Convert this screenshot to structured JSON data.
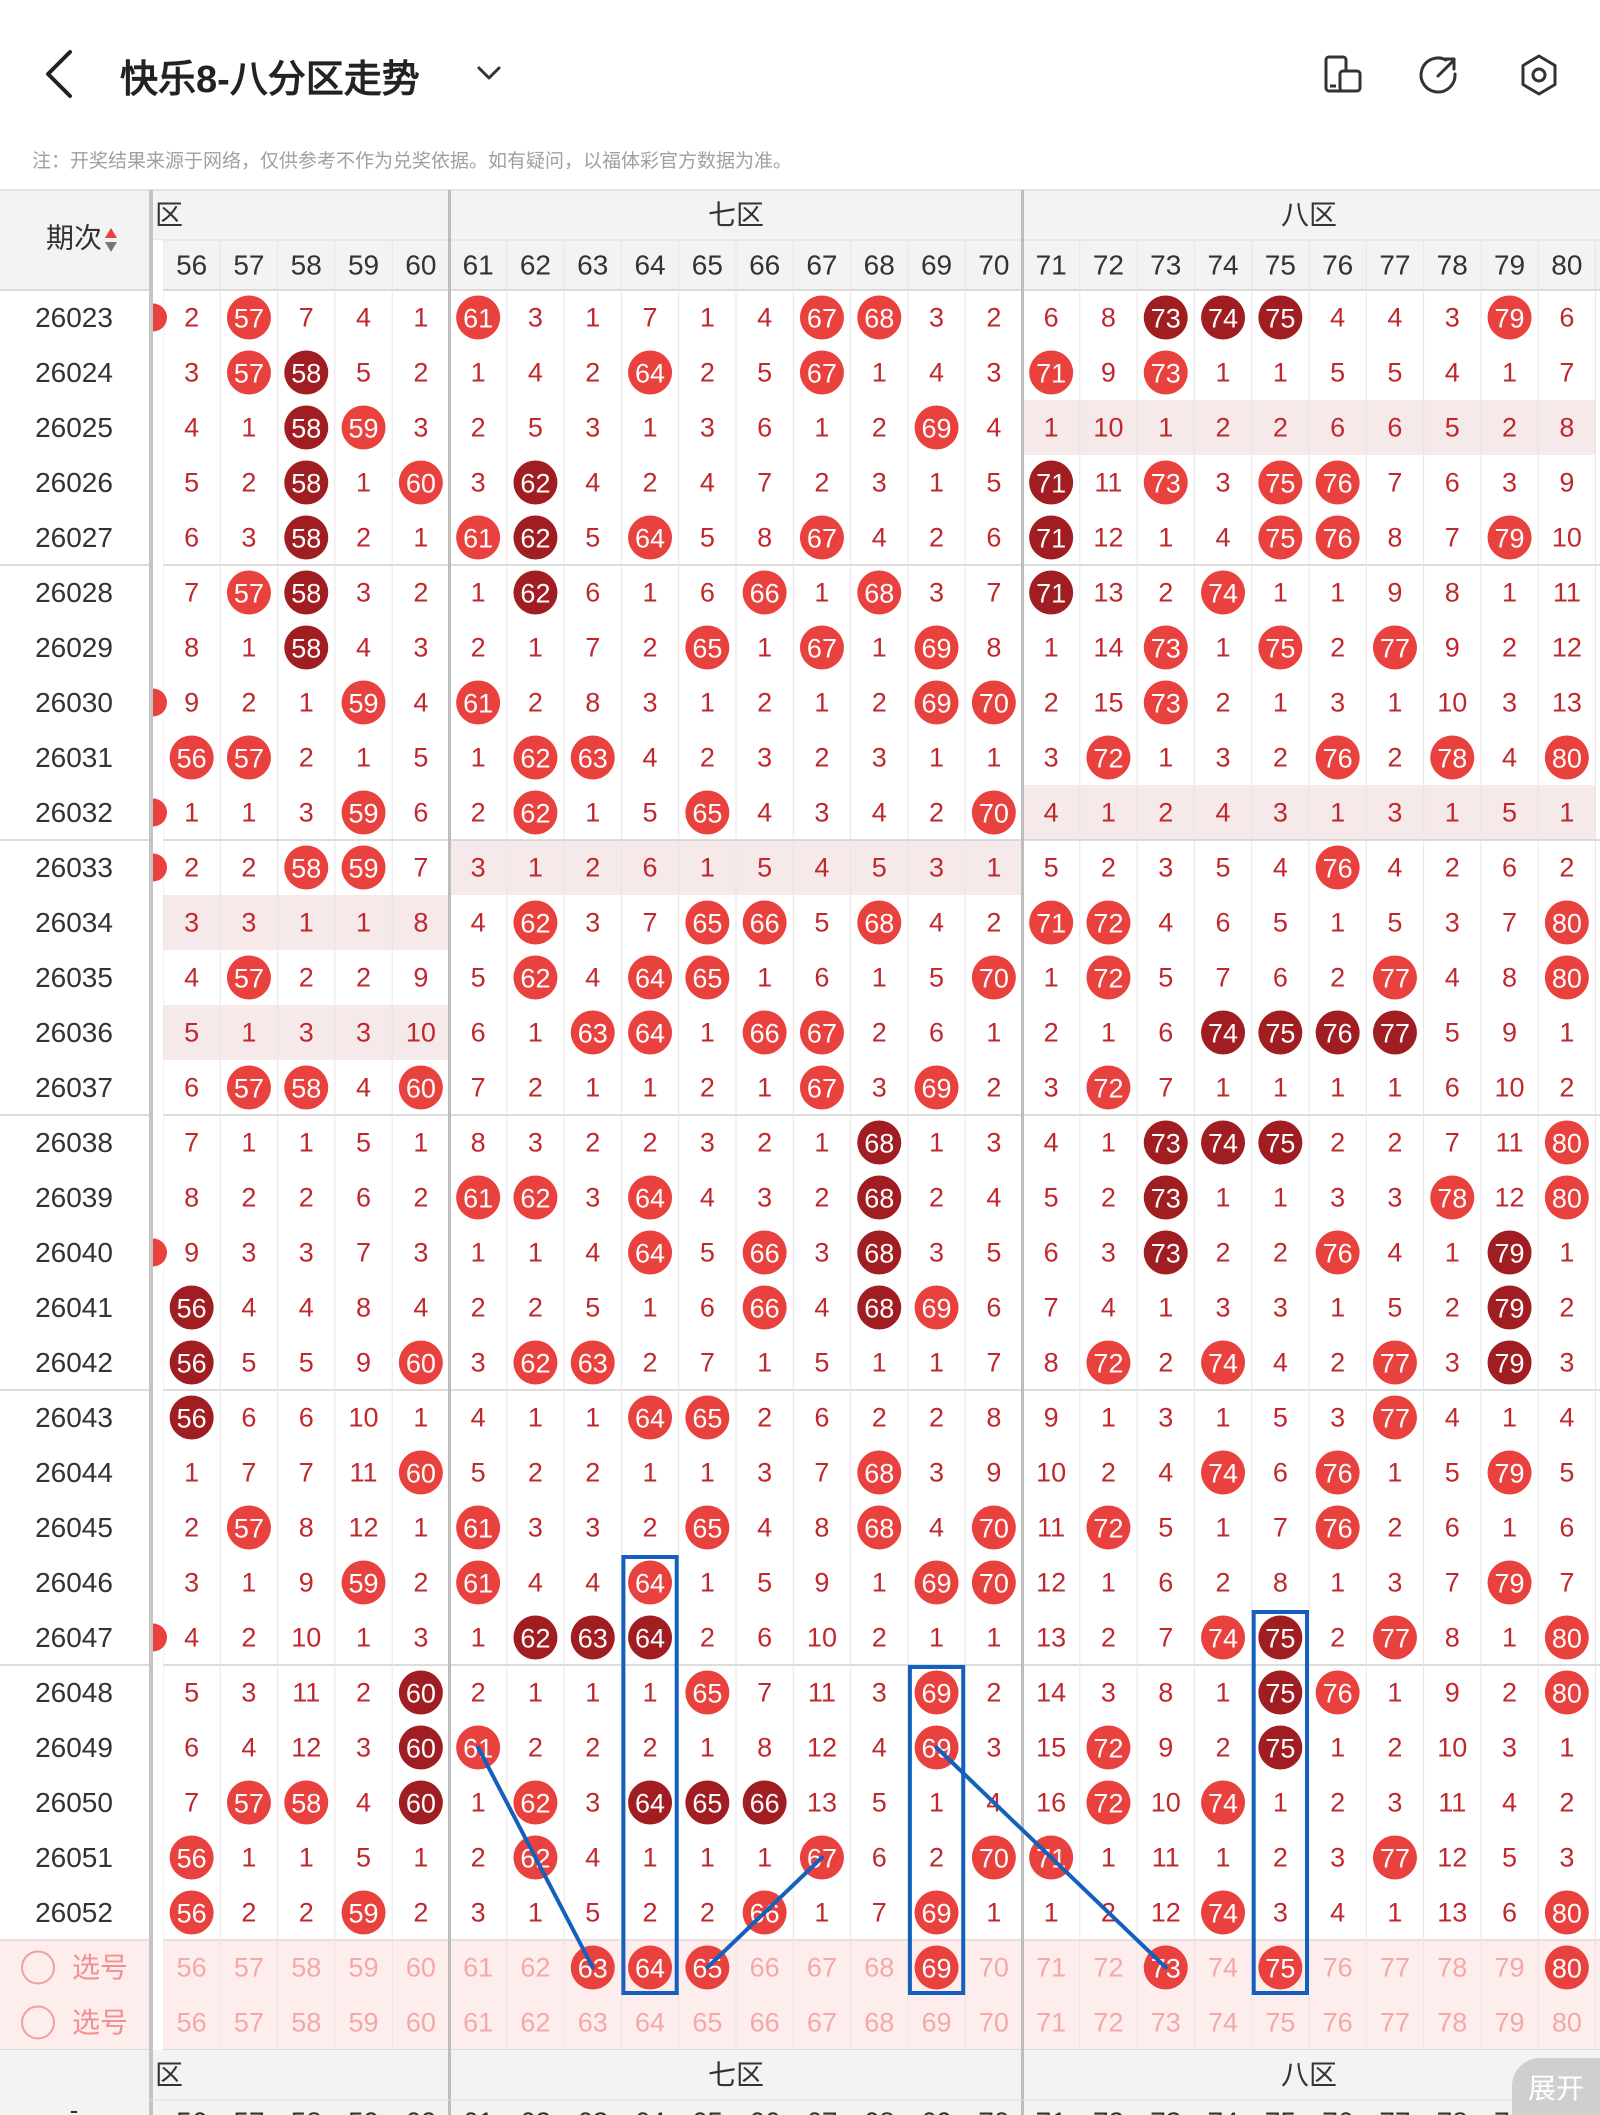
{
  "header": {
    "title": "快乐8-八分区走势",
    "icons": [
      "back-icon",
      "chevron-down-icon",
      "screen-rotate-icon",
      "share-icon",
      "settings-icon"
    ]
  },
  "notice": "注：开奖结果来源于网络，仅供参考不作为兑奖依据。如有疑问，以福体彩官方数据为准。",
  "table": {
    "period_label": "期次",
    "zones": [
      {
        "label": "六区",
        "visible_label": "六区"
      },
      {
        "label": "七区"
      },
      {
        "label": "八区"
      }
    ],
    "columns": [
      56,
      57,
      58,
      59,
      60,
      61,
      62,
      63,
      64,
      65,
      66,
      67,
      68,
      69,
      70,
      71,
      72,
      73,
      74,
      75,
      76,
      77,
      78,
      79,
      80
    ],
    "rows": [
      {
        "period": "26023",
        "vals": [
          "2",
          "57",
          "7",
          "4",
          "1",
          "61",
          "3",
          "1",
          "7",
          "1",
          "4",
          "67",
          "68",
          "3",
          "2",
          "6",
          "8",
          "73",
          "74",
          "75",
          "4",
          "4",
          "3",
          "79",
          "6"
        ]
      },
      {
        "period": "26024",
        "vals": [
          "3",
          "57",
          "58",
          "5",
          "2",
          "1",
          "4",
          "2",
          "64",
          "2",
          "5",
          "67",
          "1",
          "4",
          "3",
          "71",
          "9",
          "73",
          "1",
          "1",
          "5",
          "5",
          "4",
          "1",
          "7"
        ]
      },
      {
        "period": "26025",
        "vals": [
          "4",
          "1",
          "58",
          "59",
          "3",
          "2",
          "5",
          "3",
          "1",
          "3",
          "6",
          "1",
          "2",
          "69",
          "4",
          "1",
          "10",
          "1",
          "2",
          "2",
          "6",
          "6",
          "5",
          "2",
          "8"
        ]
      },
      {
        "period": "26026",
        "vals": [
          "5",
          "2",
          "58",
          "1",
          "60",
          "3",
          "62",
          "4",
          "2",
          "4",
          "7",
          "2",
          "3",
          "1",
          "5",
          "71",
          "11",
          "73",
          "3",
          "75",
          "76",
          "7",
          "6",
          "3",
          "9"
        ]
      },
      {
        "period": "26027",
        "vals": [
          "6",
          "3",
          "58",
          "2",
          "1",
          "61",
          "62",
          "5",
          "64",
          "5",
          "8",
          "67",
          "4",
          "2",
          "6",
          "71",
          "12",
          "1",
          "4",
          "75",
          "76",
          "8",
          "7",
          "79",
          "10"
        ]
      },
      {
        "period": "26028",
        "vals": [
          "7",
          "57",
          "58",
          "3",
          "2",
          "1",
          "62",
          "6",
          "1",
          "6",
          "66",
          "1",
          "68",
          "3",
          "7",
          "71",
          "13",
          "2",
          "74",
          "1",
          "1",
          "9",
          "8",
          "1",
          "11"
        ]
      },
      {
        "period": "26029",
        "vals": [
          "8",
          "1",
          "58",
          "4",
          "3",
          "2",
          "1",
          "7",
          "2",
          "65",
          "1",
          "67",
          "1",
          "69",
          "8",
          "1",
          "14",
          "73",
          "1",
          "75",
          "2",
          "77",
          "9",
          "2",
          "12"
        ]
      },
      {
        "period": "26030",
        "vals": [
          "9",
          "2",
          "1",
          "59",
          "4",
          "61",
          "2",
          "8",
          "3",
          "1",
          "2",
          "1",
          "2",
          "69",
          "70",
          "2",
          "15",
          "73",
          "2",
          "1",
          "3",
          "1",
          "10",
          "3",
          "13"
        ]
      },
      {
        "period": "26031",
        "vals": [
          "56",
          "57",
          "2",
          "1",
          "5",
          "1",
          "62",
          "63",
          "4",
          "2",
          "3",
          "2",
          "3",
          "1",
          "1",
          "3",
          "72",
          "1",
          "3",
          "2",
          "76",
          "2",
          "78",
          "4",
          "80"
        ]
      },
      {
        "period": "26032",
        "vals": [
          "1",
          "1",
          "3",
          "59",
          "6",
          "2",
          "62",
          "1",
          "5",
          "65",
          "4",
          "3",
          "4",
          "2",
          "70",
          "4",
          "1",
          "2",
          "4",
          "3",
          "1",
          "3",
          "1",
          "5",
          "1"
        ]
      },
      {
        "period": "26033",
        "vals": [
          "2",
          "2",
          "58",
          "59",
          "7",
          "3",
          "1",
          "2",
          "6",
          "1",
          "5",
          "4",
          "5",
          "3",
          "1",
          "5",
          "2",
          "3",
          "5",
          "4",
          "76",
          "4",
          "2",
          "6",
          "2"
        ]
      },
      {
        "period": "26034",
        "vals": [
          "3",
          "3",
          "1",
          "1",
          "8",
          "4",
          "62",
          "3",
          "7",
          "65",
          "66",
          "5",
          "68",
          "4",
          "2",
          "71",
          "72",
          "4",
          "6",
          "5",
          "1",
          "5",
          "3",
          "7",
          "80"
        ]
      },
      {
        "period": "26035",
        "vals": [
          "4",
          "57",
          "2",
          "2",
          "9",
          "5",
          "62",
          "4",
          "64",
          "65",
          "1",
          "6",
          "1",
          "5",
          "70",
          "1",
          "72",
          "5",
          "7",
          "6",
          "2",
          "77",
          "4",
          "8",
          "80"
        ]
      },
      {
        "period": "26036",
        "vals": [
          "5",
          "1",
          "3",
          "3",
          "10",
          "6",
          "1",
          "63",
          "64",
          "1",
          "66",
          "67",
          "2",
          "6",
          "1",
          "2",
          "1",
          "6",
          "74",
          "75",
          "76",
          "77",
          "5",
          "9",
          "1"
        ]
      },
      {
        "period": "26037",
        "vals": [
          "6",
          "57",
          "58",
          "4",
          "60",
          "7",
          "2",
          "1",
          "1",
          "2",
          "1",
          "67",
          "3",
          "69",
          "2",
          "3",
          "72",
          "7",
          "1",
          "1",
          "1",
          "1",
          "6",
          "10",
          "2"
        ]
      },
      {
        "period": "26038",
        "vals": [
          "7",
          "1",
          "1",
          "5",
          "1",
          "8",
          "3",
          "2",
          "2",
          "3",
          "2",
          "1",
          "68",
          "1",
          "3",
          "4",
          "1",
          "73",
          "74",
          "75",
          "2",
          "2",
          "7",
          "11",
          "80"
        ]
      },
      {
        "period": "26039",
        "vals": [
          "8",
          "2",
          "2",
          "6",
          "2",
          "61",
          "62",
          "3",
          "64",
          "4",
          "3",
          "2",
          "68",
          "2",
          "4",
          "5",
          "2",
          "73",
          "1",
          "1",
          "3",
          "3",
          "78",
          "12",
          "80"
        ]
      },
      {
        "period": "26040",
        "vals": [
          "9",
          "3",
          "3",
          "7",
          "3",
          "1",
          "1",
          "4",
          "64",
          "5",
          "66",
          "3",
          "68",
          "3",
          "5",
          "6",
          "3",
          "73",
          "2",
          "2",
          "76",
          "4",
          "1",
          "79",
          "1"
        ]
      },
      {
        "period": "26041",
        "vals": [
          "56",
          "4",
          "4",
          "8",
          "4",
          "2",
          "2",
          "5",
          "1",
          "6",
          "66",
          "4",
          "68",
          "69",
          "6",
          "7",
          "4",
          "1",
          "3",
          "3",
          "1",
          "5",
          "2",
          "79",
          "2"
        ]
      },
      {
        "period": "26042",
        "vals": [
          "56",
          "5",
          "5",
          "9",
          "60",
          "3",
          "62",
          "63",
          "2",
          "7",
          "1",
          "5",
          "1",
          "1",
          "7",
          "8",
          "72",
          "2",
          "74",
          "4",
          "2",
          "77",
          "3",
          "79",
          "3"
        ]
      },
      {
        "period": "26043",
        "vals": [
          "56",
          "6",
          "6",
          "10",
          "1",
          "4",
          "1",
          "1",
          "64",
          "65",
          "2",
          "6",
          "2",
          "2",
          "8",
          "9",
          "1",
          "3",
          "1",
          "5",
          "3",
          "77",
          "4",
          "1",
          "4"
        ]
      },
      {
        "period": "26044",
        "vals": [
          "1",
          "7",
          "7",
          "11",
          "60",
          "5",
          "2",
          "2",
          "1",
          "1",
          "3",
          "7",
          "68",
          "3",
          "9",
          "10",
          "2",
          "4",
          "74",
          "6",
          "76",
          "1",
          "5",
          "79",
          "5"
        ]
      },
      {
        "period": "26045",
        "vals": [
          "2",
          "57",
          "8",
          "12",
          "1",
          "61",
          "3",
          "3",
          "2",
          "65",
          "4",
          "8",
          "68",
          "4",
          "70",
          "11",
          "72",
          "5",
          "1",
          "7",
          "76",
          "2",
          "6",
          "1",
          "6"
        ]
      },
      {
        "period": "26046",
        "vals": [
          "3",
          "1",
          "9",
          "59",
          "2",
          "61",
          "4",
          "4",
          "64",
          "1",
          "5",
          "9",
          "1",
          "69",
          "70",
          "12",
          "1",
          "6",
          "2",
          "8",
          "1",
          "3",
          "7",
          "79",
          "7"
        ]
      },
      {
        "period": "26047",
        "vals": [
          "4",
          "2",
          "10",
          "1",
          "3",
          "1",
          "62",
          "63",
          "64",
          "2",
          "6",
          "10",
          "2",
          "1",
          "1",
          "13",
          "2",
          "7",
          "74",
          "75",
          "2",
          "77",
          "8",
          "1",
          "80"
        ]
      },
      {
        "period": "26048",
        "vals": [
          "5",
          "3",
          "11",
          "2",
          "60",
          "2",
          "1",
          "1",
          "1",
          "65",
          "7",
          "11",
          "3",
          "69",
          "2",
          "14",
          "3",
          "8",
          "1",
          "75",
          "76",
          "1",
          "9",
          "2",
          "80"
        ]
      },
      {
        "period": "26049",
        "vals": [
          "6",
          "4",
          "12",
          "3",
          "60",
          "61",
          "2",
          "2",
          "2",
          "1",
          "8",
          "12",
          "4",
          "69",
          "3",
          "15",
          "72",
          "9",
          "2",
          "75",
          "1",
          "2",
          "10",
          "3",
          "1"
        ]
      },
      {
        "period": "26050",
        "vals": [
          "7",
          "57",
          "58",
          "4",
          "60",
          "1",
          "62",
          "3",
          "64",
          "65",
          "66",
          "13",
          "5",
          "1",
          "4",
          "16",
          "72",
          "10",
          "74",
          "1",
          "2",
          "3",
          "11",
          "4",
          "2"
        ]
      },
      {
        "period": "26051",
        "vals": [
          "56",
          "1",
          "1",
          "5",
          "1",
          "2",
          "62",
          "4",
          "1",
          "1",
          "1",
          "67",
          "6",
          "2",
          "70",
          "71",
          "1",
          "11",
          "1",
          "2",
          "3",
          "77",
          "12",
          "5",
          "3"
        ]
      },
      {
        "period": "26052",
        "vals": [
          "56",
          "2",
          "2",
          "59",
          "2",
          "3",
          "1",
          "5",
          "2",
          "2",
          "66",
          "1",
          "7",
          "69",
          "1",
          "1",
          "2",
          "12",
          "74",
          "3",
          "4",
          "1",
          "13",
          "6",
          "80"
        ]
      }
    ],
    "hot_cells": [
      [
        2
      ],
      [
        2,
        3
      ],
      [
        3
      ],
      [
        3
      ],
      [
        3,
        7
      ],
      [
        3,
        7
      ],
      [
        3
      ],
      [],
      [],
      [],
      [],
      [],
      [],
      [],
      [],
      [],
      [],
      [],
      [
        0
      ],
      [
        0
      ],
      [
        0,
        4
      ],
      [],
      [],
      [],
      [
        7,
        8
      ],
      [
        4
      ],
      [
        4
      ],
      [
        4,
        8
      ],
      [],
      []
    ],
    "dark_hits": {
      "26023": [
        "73",
        "74",
        "75"
      ],
      "26024": [
        "58"
      ],
      "26025": [
        "58"
      ],
      "26026": [
        "58",
        "62",
        "71"
      ],
      "26027": [
        "58",
        "62",
        "71"
      ],
      "26028": [
        "58",
        "62",
        "71"
      ],
      "26029": [
        "58"
      ],
      "26036": [
        "74",
        "75",
        "76",
        "77"
      ],
      "26038": [
        "68",
        "73",
        "74",
        "75"
      ],
      "26039": [
        "68",
        "73"
      ],
      "26040": [
        "68",
        "73",
        "79"
      ],
      "26041": [
        "56",
        "68",
        "79"
      ],
      "26042": [
        "56",
        "79"
      ],
      "26043": [
        "56"
      ],
      "26047": [
        "62",
        "63",
        "64",
        "75"
      ],
      "26048": [
        "60",
        "75"
      ],
      "26049": [
        "60",
        "75"
      ],
      "26050": [
        "60",
        "64",
        "65",
        "66"
      ]
    },
    "select_rows": [
      {
        "label": "选号",
        "highlight": [
          "63",
          "64",
          "65",
          "69",
          "73",
          "75",
          "80"
        ]
      },
      {
        "label": "选号",
        "highlight": []
      }
    ],
    "shaded_bands": [
      {
        "period": "26025",
        "from": 15,
        "to": 24
      },
      {
        "period": "26032",
        "from": 15,
        "to": 24
      },
      {
        "period": "26033",
        "from": 5,
        "to": 14
      },
      {
        "period": "26034",
        "from": 0,
        "to": 4
      },
      {
        "period": "26036",
        "from": 0,
        "to": 4
      }
    ]
  },
  "annotations": {
    "boxes": [
      {
        "column": "64",
        "from_period": "26046",
        "to_row": "select1"
      },
      {
        "column": "69",
        "from_period": "26048",
        "to_row": "select1"
      },
      {
        "column": "75",
        "from_period": "26047",
        "to_row": "select1"
      }
    ],
    "lines": [
      {
        "from": [
          "61",
          "26049"
        ],
        "to": [
          "63",
          "select1"
        ]
      },
      {
        "from": [
          "65",
          "select1"
        ],
        "to": [
          "67",
          "26051"
        ]
      },
      {
        "from": [
          "69",
          "26049"
        ],
        "to": [
          "73",
          "select1"
        ]
      }
    ],
    "color": "#1560bd"
  },
  "footer": {
    "zones": [
      "六区",
      "七区",
      "八区"
    ],
    "expand_label": "展开"
  },
  "colors": {
    "red": "#e8413e",
    "dark_red": "#a01d22",
    "number_text": "#c0282d",
    "header_bg": "#f3f3f3",
    "select_bg": "#fdeeed",
    "band_bg": "#f6e9ea"
  }
}
